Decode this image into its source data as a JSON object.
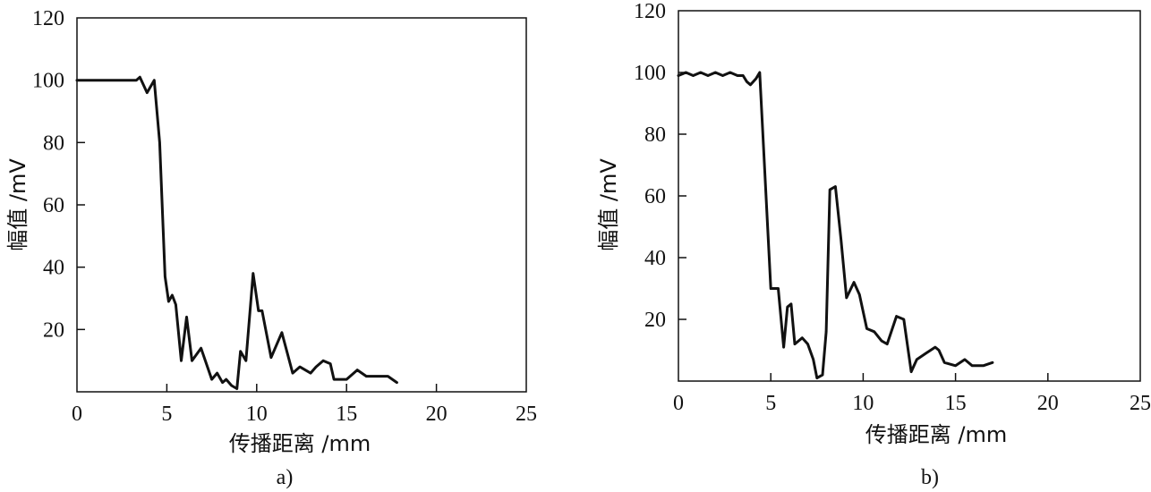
{
  "chart_data": [
    {
      "type": "line",
      "caption": "a)",
      "xlabel": "传播距离 /mm",
      "ylabel": "幅值 /mV",
      "xlim": [
        0,
        25
      ],
      "ylim": [
        0,
        120
      ],
      "xticks": [
        0,
        5,
        10,
        15,
        20,
        25
      ],
      "yticks": [
        20,
        40,
        60,
        80,
        100,
        120
      ],
      "grid": false,
      "series": [
        {
          "x": [
            0,
            3.3,
            3.5,
            3.9,
            4.2,
            4.3,
            4.6,
            4.9,
            5.1,
            5.3,
            5.5,
            5.8,
            6.1,
            6.4,
            6.9,
            7.5,
            7.8,
            8.1,
            8.3,
            8.6,
            8.9,
            9.1,
            9.4,
            9.8,
            10.1,
            10.3,
            10.8,
            11.4,
            12.0,
            12.4,
            13.0,
            13.3,
            13.7,
            14.1,
            14.3,
            15.0,
            15.6,
            16.1,
            17.3,
            17.8
          ],
          "y": [
            100,
            100,
            101,
            96,
            99,
            100,
            80,
            37,
            29,
            31,
            28,
            10,
            24,
            10,
            14,
            4,
            6,
            3,
            4,
            2,
            1,
            13,
            10,
            38,
            26,
            26,
            11,
            19,
            6,
            8,
            6,
            8,
            10,
            9,
            4,
            4,
            7,
            5,
            5,
            3
          ]
        }
      ]
    },
    {
      "type": "line",
      "caption": "b)",
      "xlabel": "传播距离 /mm",
      "ylabel": "幅值 /mV",
      "xlim": [
        0,
        25
      ],
      "ylim": [
        0,
        120
      ],
      "xticks": [
        0,
        5,
        10,
        15,
        20,
        25
      ],
      "yticks": [
        20,
        40,
        60,
        80,
        100,
        120
      ],
      "grid": false,
      "series": [
        {
          "x": [
            0,
            0.4,
            0.8,
            1.2,
            1.6,
            2.0,
            2.4,
            2.8,
            3.2,
            3.5,
            3.7,
            3.9,
            4.2,
            4.4,
            4.7,
            5.0,
            5.4,
            5.7,
            5.9,
            6.1,
            6.3,
            6.7,
            7.0,
            7.3,
            7.5,
            7.8,
            8.0,
            8.2,
            8.5,
            8.8,
            9.1,
            9.5,
            9.8,
            10.2,
            10.6,
            11.0,
            11.3,
            11.8,
            12.2,
            12.6,
            12.9,
            13.4,
            13.9,
            14.1,
            14.4,
            15.0,
            15.5,
            15.9,
            16.5,
            17.0
          ],
          "y": [
            99,
            100,
            99,
            100,
            99,
            100,
            99,
            100,
            99,
            99,
            97,
            96,
            98,
            100,
            65,
            30,
            30,
            11,
            24,
            25,
            12,
            14,
            12,
            7,
            1,
            2,
            16,
            62,
            63,
            46,
            27,
            32,
            28,
            17,
            16,
            13,
            12,
            21,
            20,
            3,
            7,
            9,
            11,
            10,
            6,
            5,
            7,
            5,
            5,
            6
          ]
        }
      ]
    }
  ]
}
